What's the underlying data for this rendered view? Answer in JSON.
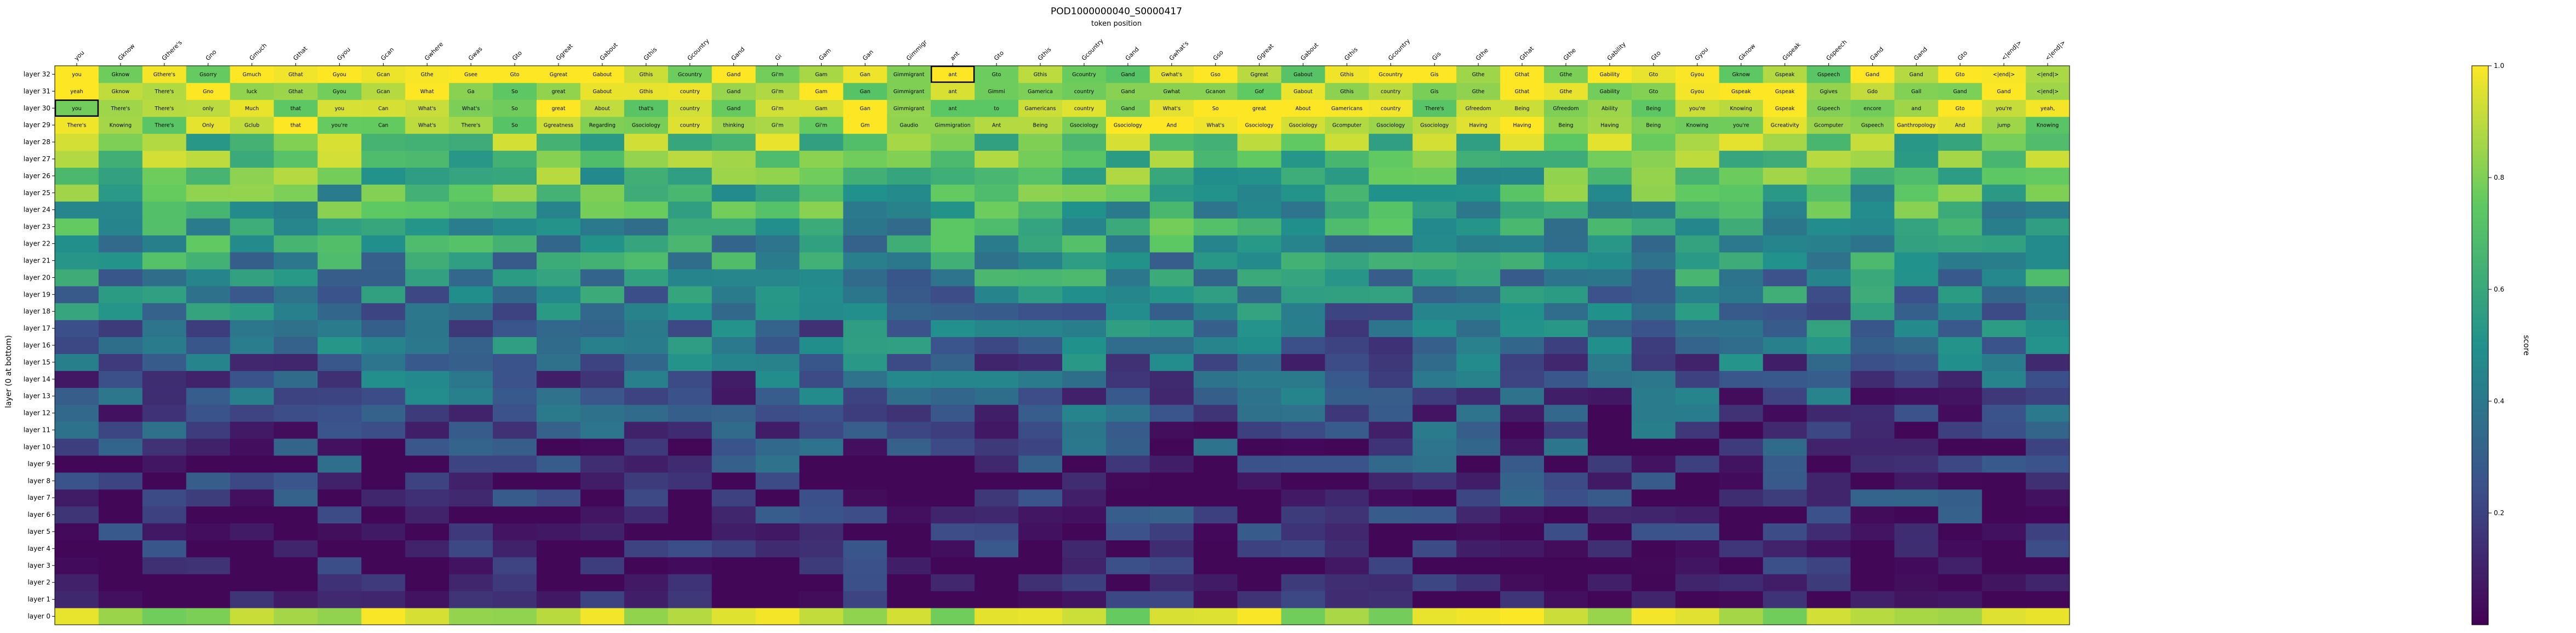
{
  "chart_data": {
    "type": "heatmap",
    "title": "POD1000000040_S0000417",
    "xlabel": "token position",
    "ylabel": "layer (0 at bottom)",
    "colorbar": {
      "label": "score",
      "range": [
        0,
        1
      ],
      "ticks": [
        "0.2",
        "0.4",
        "0.6",
        "0.8",
        "1.0"
      ],
      "colormap": [
        "#440154",
        "#3b528b",
        "#21918c",
        "#5ec962",
        "#fde725"
      ]
    },
    "tokens": [
      "you",
      "Gknow",
      "Gthere's",
      "Gno",
      "Gmuch",
      "Gthat",
      "Gyou",
      "Gcan",
      "Gwhere",
      "Gwas",
      "Gto",
      "Ggreat",
      "Gabout",
      "Gthis",
      "Gcountry",
      "Gand",
      "Gi",
      "Gam",
      "Gan",
      "Gimmigr",
      "ant",
      "Gto",
      "Gthis",
      "Gcountry",
      "Gand",
      "Gwhat's",
      "Gso",
      "Ggreat",
      "Gabout",
      "Gthis",
      "Gcountry",
      "Gis",
      "Gthe",
      "Gthat",
      "Gthe",
      "Gability",
      "Gto",
      "Gyou",
      "Gknow",
      "Gspeak",
      "Gspeech",
      "Gand",
      "Gand",
      "Gto",
      "<|end|>",
      "<|end|>"
    ],
    "layers": [
      "layer 0",
      "layer 1",
      "layer 2",
      "layer 3",
      "layer 4",
      "layer 5",
      "layer 6",
      "layer 7",
      "layer 8",
      "layer 9",
      "layer 10",
      "layer 11",
      "layer 12",
      "layer 13",
      "layer 14",
      "layer 15",
      "layer 16",
      "layer 17",
      "layer 18",
      "layer 19",
      "layer 20",
      "layer 21",
      "layer 22",
      "layer 23",
      "layer 24",
      "layer 25",
      "layer 26",
      "layer 27",
      "layer 28",
      "layer 29",
      "layer 30",
      "layer 31",
      "layer 32"
    ],
    "boxed_cells": [
      [
        30,
        0
      ],
      [
        32,
        20
      ]
    ],
    "top_rows": [
      {
        "layer": 32,
        "labels": [
          "you",
          "Gknow",
          "Gthere's",
          "Gsorry",
          "Gmuch",
          "Gthat",
          "Gyou",
          "Gcan",
          "Gthe",
          "Gsee",
          "Gto",
          "Ggreat",
          "Gabout",
          "Gthis",
          "Gcountry",
          "Gand",
          "Gi'm",
          "Gam",
          "Gan",
          "Gimmigrant",
          "ant",
          "Gto",
          "Gthis",
          "Gcountry",
          "Gand",
          "Gwhat's",
          "Gso",
          "Ggreat",
          "Gabout",
          "Gthis",
          "Gcountry",
          "Gis",
          "Gthe",
          "Gthat",
          "Gthe",
          "Gability",
          "Gto",
          "Gyou",
          "Gknow",
          "Gspeak",
          "Gspeech",
          "Gand",
          "Gand",
          "Gto",
          "<|end|>",
          "<|end|>"
        ]
      },
      {
        "layer": 31,
        "labels": [
          "yeah",
          "Gknow",
          "There's",
          "Gno",
          "luck",
          "Gthat",
          "Gyou",
          "Gcan",
          "What",
          "Ga",
          "So",
          "great",
          "Gabout",
          "Gthis",
          "country",
          "Gand",
          "Gi'm",
          "Gam",
          "Gan",
          "Gimmigrant",
          "ant",
          "Gimmi",
          "Gamerica",
          "country",
          "Gand",
          "Gwhat",
          "Gcanon",
          "Gof",
          "Gabout",
          "Gthis",
          "country",
          "Gis",
          "Gthe",
          "Gthat",
          "Gthe",
          "Gability",
          "Gto",
          "Gyou",
          "Gspeak",
          "Gspeak",
          "Ggives",
          "Gdo",
          "Gall",
          "Gand",
          "Gand",
          "<|end|>"
        ]
      },
      {
        "layer": 30,
        "labels": [
          "you",
          "There's",
          "There's",
          "only",
          "Much",
          "that",
          "you",
          "Can",
          "What's",
          "What's",
          "So",
          "great",
          "About",
          "that's",
          "country",
          "Gand",
          "Gi'm",
          "Gam",
          "Gan",
          "Gimmigrant",
          "ant",
          "to",
          "Gamericans",
          "country",
          "Gand",
          "What's",
          "So",
          "great",
          "About",
          "Gamericans",
          "country",
          "There's",
          "Gfreedom",
          "Being",
          "Gfreedom",
          "Ability",
          "Being",
          "you're",
          "Knowing",
          "Gspeak",
          "Gspeech",
          "encore",
          "and",
          "Gto",
          "you're",
          "yeah,"
        ]
      },
      {
        "layer": 29,
        "labels": [
          "There's",
          "Knowing",
          "There's",
          "Only",
          "Gclub",
          "that",
          "you're",
          "Can",
          "What's",
          "There's",
          "So",
          "Ggreatness",
          "Regarding",
          "Gsociology",
          "country",
          "thinking",
          "Gi'm",
          "Gi'm",
          "Gm",
          "Gaudio",
          "Gimmigration",
          "Ant",
          "Being",
          "Gsociology",
          "Gsociology",
          "And",
          "What's",
          "Gsociology",
          "Gsociology",
          "Gcomputer",
          "Gsociology",
          "Gsociology",
          "Having",
          "Having",
          "Being",
          "Having",
          "Being",
          "Knowing",
          "you're",
          "Gcreativity",
          "Gcomputer",
          "Gspeech",
          "Ganthropology",
          "And",
          "jump",
          "Knowing"
        ]
      }
    ]
  }
}
